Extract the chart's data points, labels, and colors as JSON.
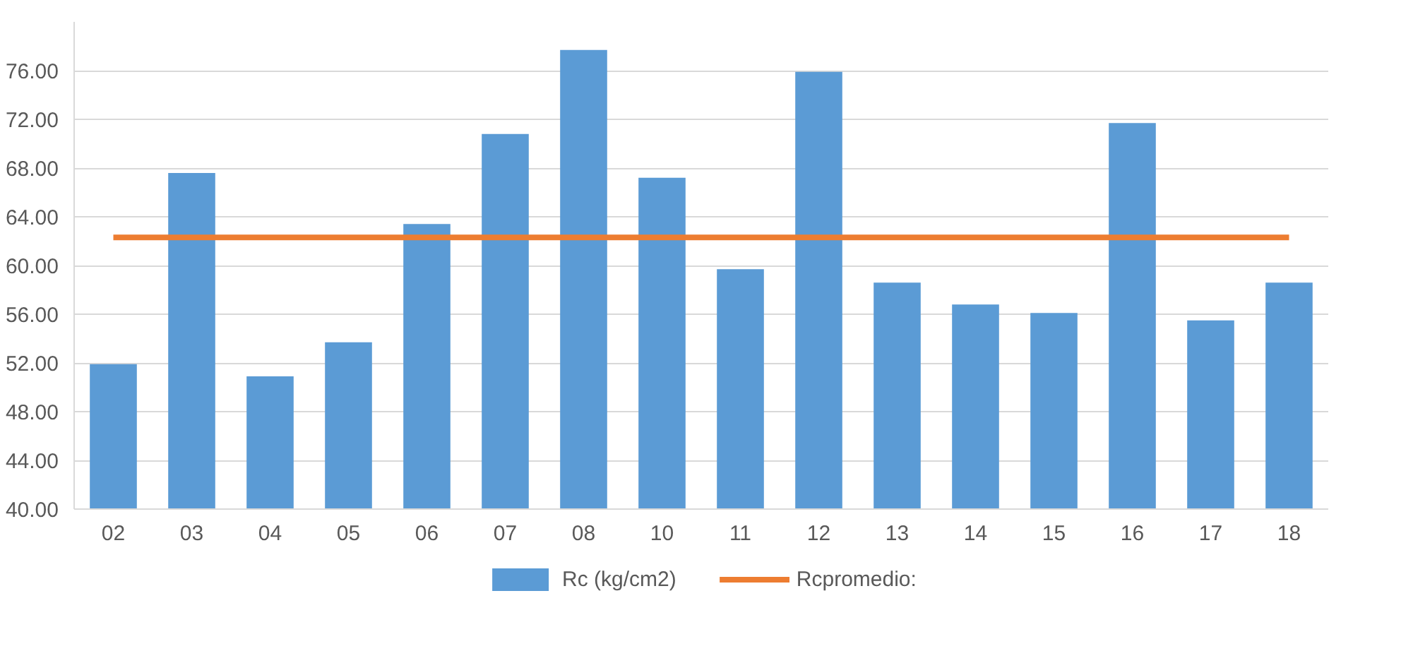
{
  "chart_data": {
    "type": "bar",
    "categories": [
      "02",
      "03",
      "04",
      "05",
      "06",
      "07",
      "08",
      "10",
      "11",
      "12",
      "13",
      "14",
      "15",
      "16",
      "17",
      "18"
    ],
    "series": [
      {
        "name": "Rc (kg/cm2)",
        "color": "#5b9bd5",
        "values": [
          51.9,
          67.6,
          50.9,
          53.7,
          63.4,
          70.8,
          77.7,
          67.2,
          59.7,
          75.9,
          58.6,
          56.8,
          56.1,
          71.7,
          55.5,
          58.6
        ]
      },
      {
        "name": "Rcpromedio:",
        "type": "line",
        "color": "#ed7d31",
        "values": [
          62.3,
          62.3,
          62.3,
          62.3,
          62.3,
          62.3,
          62.3,
          62.3,
          62.3,
          62.3,
          62.3,
          62.3,
          62.3,
          62.3,
          62.3,
          62.3
        ]
      }
    ],
    "ylim": [
      40,
      80
    ],
    "yticks": [
      {
        "value": 40,
        "label": "40.00"
      },
      {
        "value": 44,
        "label": "44.00"
      },
      {
        "value": 48,
        "label": "48.00"
      },
      {
        "value": 52,
        "label": "52.00"
      },
      {
        "value": 56,
        "label": "56.00"
      },
      {
        "value": 60,
        "label": "60.00"
      },
      {
        "value": 64,
        "label": "64.00"
      },
      {
        "value": 68,
        "label": "68.00"
      },
      {
        "value": 72,
        "label": "72.00"
      },
      {
        "value": 76,
        "label": "76.00"
      }
    ],
    "grid": "y",
    "legend": "bottom"
  }
}
